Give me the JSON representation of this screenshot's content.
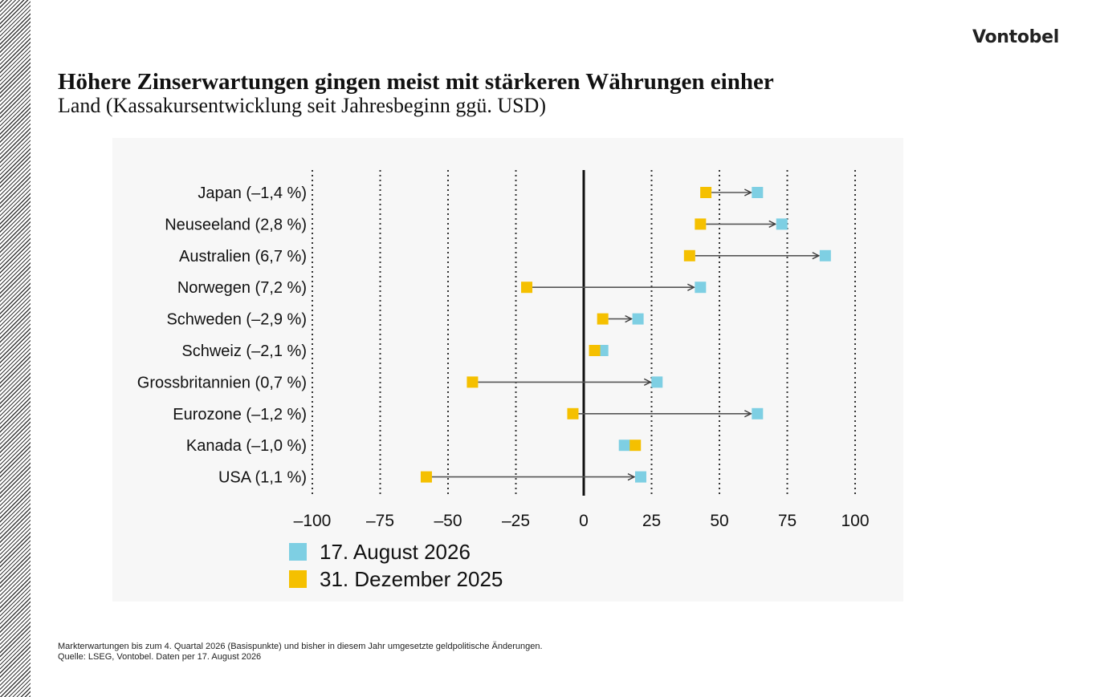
{
  "brand": {
    "logo": "Vontobel"
  },
  "header": {
    "title": "Höhere Zinserwartungen gingen meist mit stärkeren Währungen einher",
    "subtitle": "Land (Kassakursentwicklung seit Jahresbeginn ggü. USD)"
  },
  "footer": {
    "note": "Markterwartungen bis zum 4. Quartal 2026 (Basispunkte) und bisher in diesem Jahr umgesetzte geldpolitische Änderungen.",
    "source": "Quelle: LSEG, Vontobel. Daten per 17. August 2026"
  },
  "chart_data": {
    "type": "scatter",
    "subtype": "arrow-dot-plot",
    "categories": [
      "Japan (–1,4 %)",
      "Neuseeland (2,8 %)",
      "Australien (6,7 %)",
      "Norwegen (7,2 %)",
      "Schweden (–2,9 %)",
      "Schweiz (–2,1 %)",
      "Grossbritannien (0,7 %)",
      "Eurozone (–1,2 %)",
      "Kanada (–1,0 %)",
      "USA (1,1 %)"
    ],
    "series": [
      {
        "name": "31. Dezember 2025",
        "color": "#f5c000",
        "values": [
          45,
          43,
          39,
          -21,
          7,
          4,
          -41,
          -4,
          19,
          -58
        ]
      },
      {
        "name": "17. August 2026",
        "color": "#7ecfe3",
        "values": [
          64,
          73,
          89,
          43,
          20,
          7,
          27,
          64,
          15,
          21
        ]
      }
    ],
    "xlim": [
      -100,
      100
    ],
    "xticks": [
      -100,
      -75,
      -50,
      -25,
      0,
      25,
      50,
      75,
      100
    ],
    "xtick_labels": [
      "–100",
      "–75",
      "–50",
      "–25",
      "0",
      "25",
      "50",
      "75",
      "100"
    ],
    "grid": "vertical dotted",
    "arrows": "from 31. Dezember 2025 to 17. August 2026",
    "legend_position": "bottom-left"
  }
}
